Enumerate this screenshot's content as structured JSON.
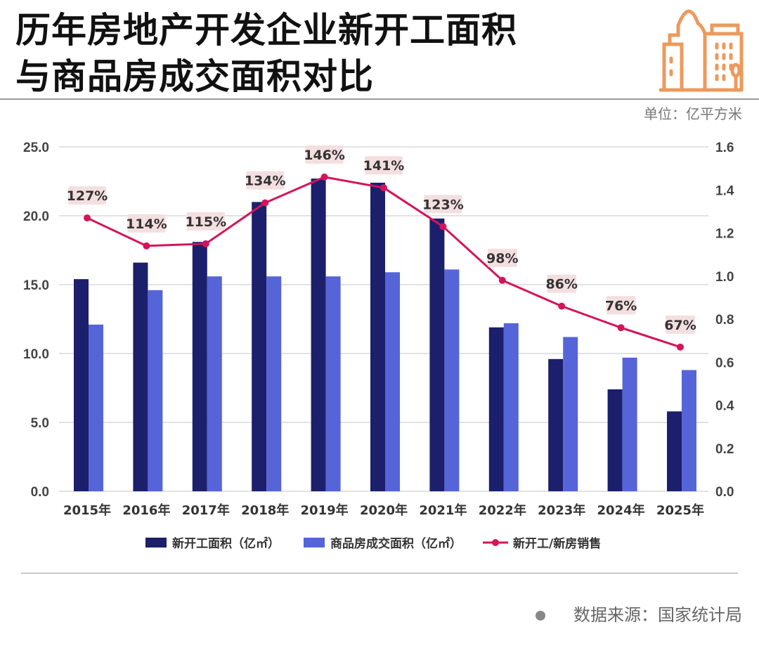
{
  "header": {
    "title_line1": "历年房地产开发企业新开工面积",
    "title_line2": "与商品房成交面积对比",
    "unit": "单位：亿平方米",
    "icon": "building-icon"
  },
  "footer": {
    "source": "数据来源：国家统计局"
  },
  "chart_data": {
    "type": "bar",
    "categories": [
      "2015年",
      "2016年",
      "2017年",
      "2018年",
      "2019年",
      "2020年",
      "2021年",
      "2022年",
      "2023年",
      "2024年",
      "2025年"
    ],
    "series": [
      {
        "name": "新开工面积（亿㎡）",
        "type": "bar",
        "axis": "left",
        "color": "#1c1f6b",
        "values": [
          15.4,
          16.6,
          18.1,
          21.0,
          22.7,
          22.4,
          19.8,
          11.9,
          9.6,
          7.4,
          5.8
        ]
      },
      {
        "name": "商品房成交面积（亿㎡）",
        "type": "bar",
        "axis": "left",
        "color": "#5565d8",
        "values": [
          12.1,
          14.6,
          15.6,
          15.6,
          15.6,
          15.9,
          16.1,
          12.2,
          11.2,
          9.7,
          8.8
        ]
      },
      {
        "name": "新开工/新房销售",
        "type": "line",
        "axis": "right",
        "color": "#d4145a",
        "values": [
          1.27,
          1.14,
          1.15,
          1.34,
          1.46,
          1.41,
          1.23,
          0.98,
          0.86,
          0.76,
          0.67
        ],
        "labels": [
          "127%",
          "114%",
          "115%",
          "134%",
          "146%",
          "141%",
          "123%",
          "98%",
          "86%",
          "76%",
          "67%"
        ]
      }
    ],
    "y_left": {
      "ylim": [
        0,
        25
      ],
      "ticks": [
        "0.0",
        "5.0",
        "10.0",
        "15.0",
        "20.0",
        "25.0"
      ]
    },
    "y_right": {
      "ylim": [
        0,
        1.6
      ],
      "ticks": [
        "0.0",
        "0.2",
        "0.4",
        "0.6",
        "0.8",
        "1.0",
        "1.2",
        "1.4",
        "1.6"
      ]
    },
    "grid": true,
    "legend": "bottom"
  }
}
